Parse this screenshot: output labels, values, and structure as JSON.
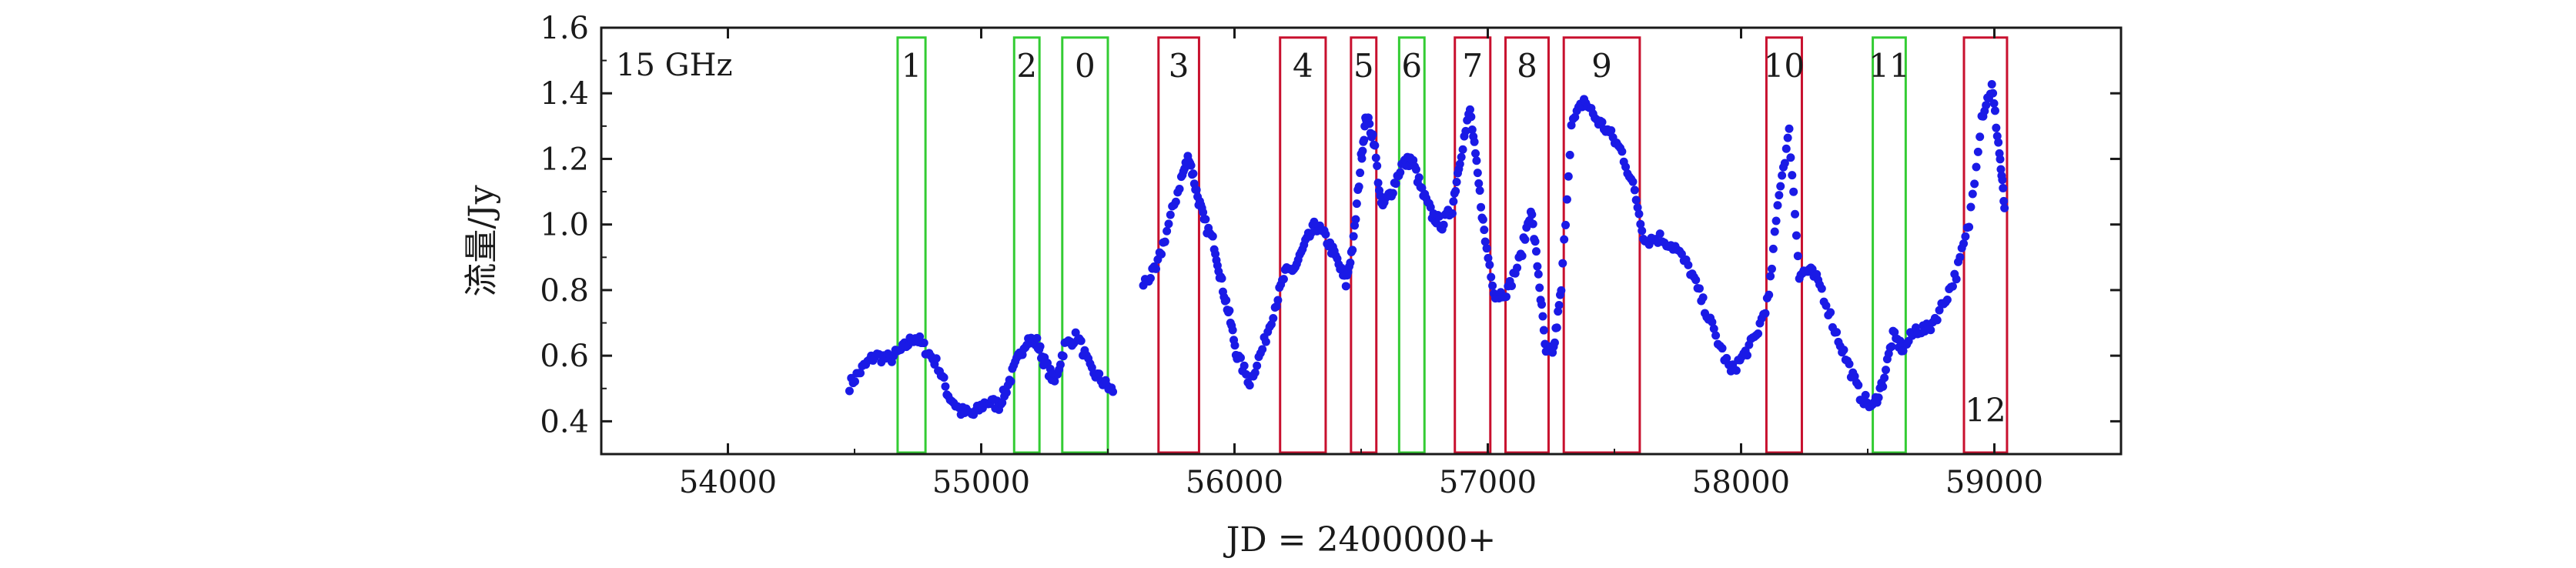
{
  "chart_data": {
    "type": "scatter",
    "annotation": "15 GHz",
    "xlabel": "JD = 2400000+",
    "ylabel": "流量/Jy",
    "xlim": [
      53500,
      59500
    ],
    "ylim": [
      0.3,
      1.6
    ],
    "xticks": [
      54000,
      55000,
      56000,
      57000,
      58000,
      59000
    ],
    "yticks": [
      0.4,
      0.6,
      0.8,
      1.0,
      1.2,
      1.4,
      1.6
    ],
    "ytick_labels": [
      "0.4",
      "0.6",
      "0.8",
      "1.0",
      "1.2",
      "1.4",
      "1.6"
    ],
    "point_color": "#1a1ae6",
    "green_color": "#33cc33",
    "red_color": "#c8102e",
    "windows": [
      {
        "label": "1",
        "x0": 54670,
        "x1": 54780,
        "color": "green",
        "label_y": 1.45
      },
      {
        "label": "2",
        "x0": 55130,
        "x1": 55230,
        "color": "green",
        "label_y": 1.45
      },
      {
        "label": "0",
        "x0": 55320,
        "x1": 55500,
        "color": "green",
        "label_y": 1.45
      },
      {
        "label": "3",
        "x0": 55700,
        "x1": 55860,
        "color": "red",
        "label_y": 1.45
      },
      {
        "label": "4",
        "x0": 56180,
        "x1": 56360,
        "color": "red",
        "label_y": 1.45
      },
      {
        "label": "5",
        "x0": 56460,
        "x1": 56560,
        "color": "red",
        "label_y": 1.45
      },
      {
        "label": "6",
        "x0": 56650,
        "x1": 56750,
        "color": "green",
        "label_y": 1.45
      },
      {
        "label": "7",
        "x0": 56870,
        "x1": 57010,
        "color": "red",
        "label_y": 1.45
      },
      {
        "label": "8",
        "x0": 57070,
        "x1": 57240,
        "color": "red",
        "label_y": 1.45
      },
      {
        "label": "9",
        "x0": 57300,
        "x1": 57600,
        "color": "red",
        "label_y": 1.45
      },
      {
        "label": "10",
        "x0": 58100,
        "x1": 58240,
        "color": "red",
        "label_y": 1.45
      },
      {
        "label": "11",
        "x0": 58520,
        "x1": 58650,
        "color": "green",
        "label_y": 1.45
      },
      {
        "label": "12",
        "x0": 58880,
        "x1": 59050,
        "color": "red",
        "label_y": 0.4
      }
    ],
    "curve": [
      [
        54480,
        0.51
      ],
      [
        54530,
        0.56
      ],
      [
        54580,
        0.6
      ],
      [
        54640,
        0.59
      ],
      [
        54690,
        0.62
      ],
      [
        54740,
        0.66
      ],
      [
        54780,
        0.62
      ],
      [
        54830,
        0.57
      ],
      [
        54870,
        0.48
      ],
      [
        54920,
        0.43
      ],
      [
        54970,
        0.42
      ],
      [
        55020,
        0.46
      ],
      [
        55070,
        0.45
      ],
      [
        55100,
        0.5
      ],
      [
        55140,
        0.58
      ],
      [
        55180,
        0.65
      ],
      [
        55220,
        0.64
      ],
      [
        55250,
        0.58
      ],
      [
        55290,
        0.52
      ],
      [
        55330,
        0.63
      ],
      [
        55380,
        0.66
      ],
      [
        55430,
        0.56
      ],
      [
        55480,
        0.52
      ],
      [
        55520,
        0.49
      ],
      [
        55640,
        0.82
      ],
      [
        55690,
        0.86
      ],
      [
        55740,
        1.0
      ],
      [
        55790,
        1.14
      ],
      [
        55820,
        1.21
      ],
      [
        55850,
        1.1
      ],
      [
        55880,
        1.01
      ],
      [
        55920,
        0.94
      ],
      [
        55950,
        0.82
      ],
      [
        55980,
        0.72
      ],
      [
        56010,
        0.6
      ],
      [
        56060,
        0.52
      ],
      [
        56110,
        0.62
      ],
      [
        56160,
        0.75
      ],
      [
        56200,
        0.85
      ],
      [
        56240,
        0.87
      ],
      [
        56280,
        0.94
      ],
      [
        56320,
        1.0
      ],
      [
        56360,
        0.96
      ],
      [
        56400,
        0.9
      ],
      [
        56440,
        0.82
      ],
      [
        56470,
        0.95
      ],
      [
        56500,
        1.2
      ],
      [
        56520,
        1.33
      ],
      [
        56550,
        1.26
      ],
      [
        56580,
        1.05
      ],
      [
        56620,
        1.1
      ],
      [
        56660,
        1.18
      ],
      [
        56700,
        1.2
      ],
      [
        56740,
        1.1
      ],
      [
        56780,
        1.03
      ],
      [
        56820,
        1.0
      ],
      [
        56860,
        1.05
      ],
      [
        56890,
        1.2
      ],
      [
        56930,
        1.35
      ],
      [
        56960,
        1.15
      ],
      [
        56990,
        0.95
      ],
      [
        57030,
        0.78
      ],
      [
        57080,
        0.8
      ],
      [
        57130,
        0.9
      ],
      [
        57170,
        1.05
      ],
      [
        57200,
        0.85
      ],
      [
        57230,
        0.6
      ],
      [
        57260,
        0.62
      ],
      [
        57290,
        0.8
      ],
      [
        57330,
        1.3
      ],
      [
        57380,
        1.38
      ],
      [
        57430,
        1.32
      ],
      [
        57480,
        1.28
      ],
      [
        57530,
        1.22
      ],
      [
        57580,
        1.1
      ],
      [
        57620,
        0.95
      ],
      [
        57680,
        0.96
      ],
      [
        57740,
        0.93
      ],
      [
        57800,
        0.86
      ],
      [
        57850,
        0.76
      ],
      [
        57900,
        0.66
      ],
      [
        57960,
        0.55
      ],
      [
        58010,
        0.6
      ],
      [
        58060,
        0.66
      ],
      [
        58110,
        0.78
      ],
      [
        58150,
        1.1
      ],
      [
        58190,
        1.28
      ],
      [
        58230,
        0.85
      ],
      [
        58270,
        0.86
      ],
      [
        58310,
        0.82
      ],
      [
        58370,
        0.68
      ],
      [
        58420,
        0.58
      ],
      [
        58470,
        0.48
      ],
      [
        58520,
        0.44
      ],
      [
        58560,
        0.52
      ],
      [
        58600,
        0.66
      ],
      [
        58640,
        0.62
      ],
      [
        58690,
        0.68
      ],
      [
        58740,
        0.68
      ],
      [
        58800,
        0.76
      ],
      [
        58850,
        0.85
      ],
      [
        58900,
        1.0
      ],
      [
        58950,
        1.33
      ],
      [
        58990,
        1.42
      ],
      [
        59020,
        1.22
      ],
      [
        59040,
        1.05
      ]
    ]
  }
}
